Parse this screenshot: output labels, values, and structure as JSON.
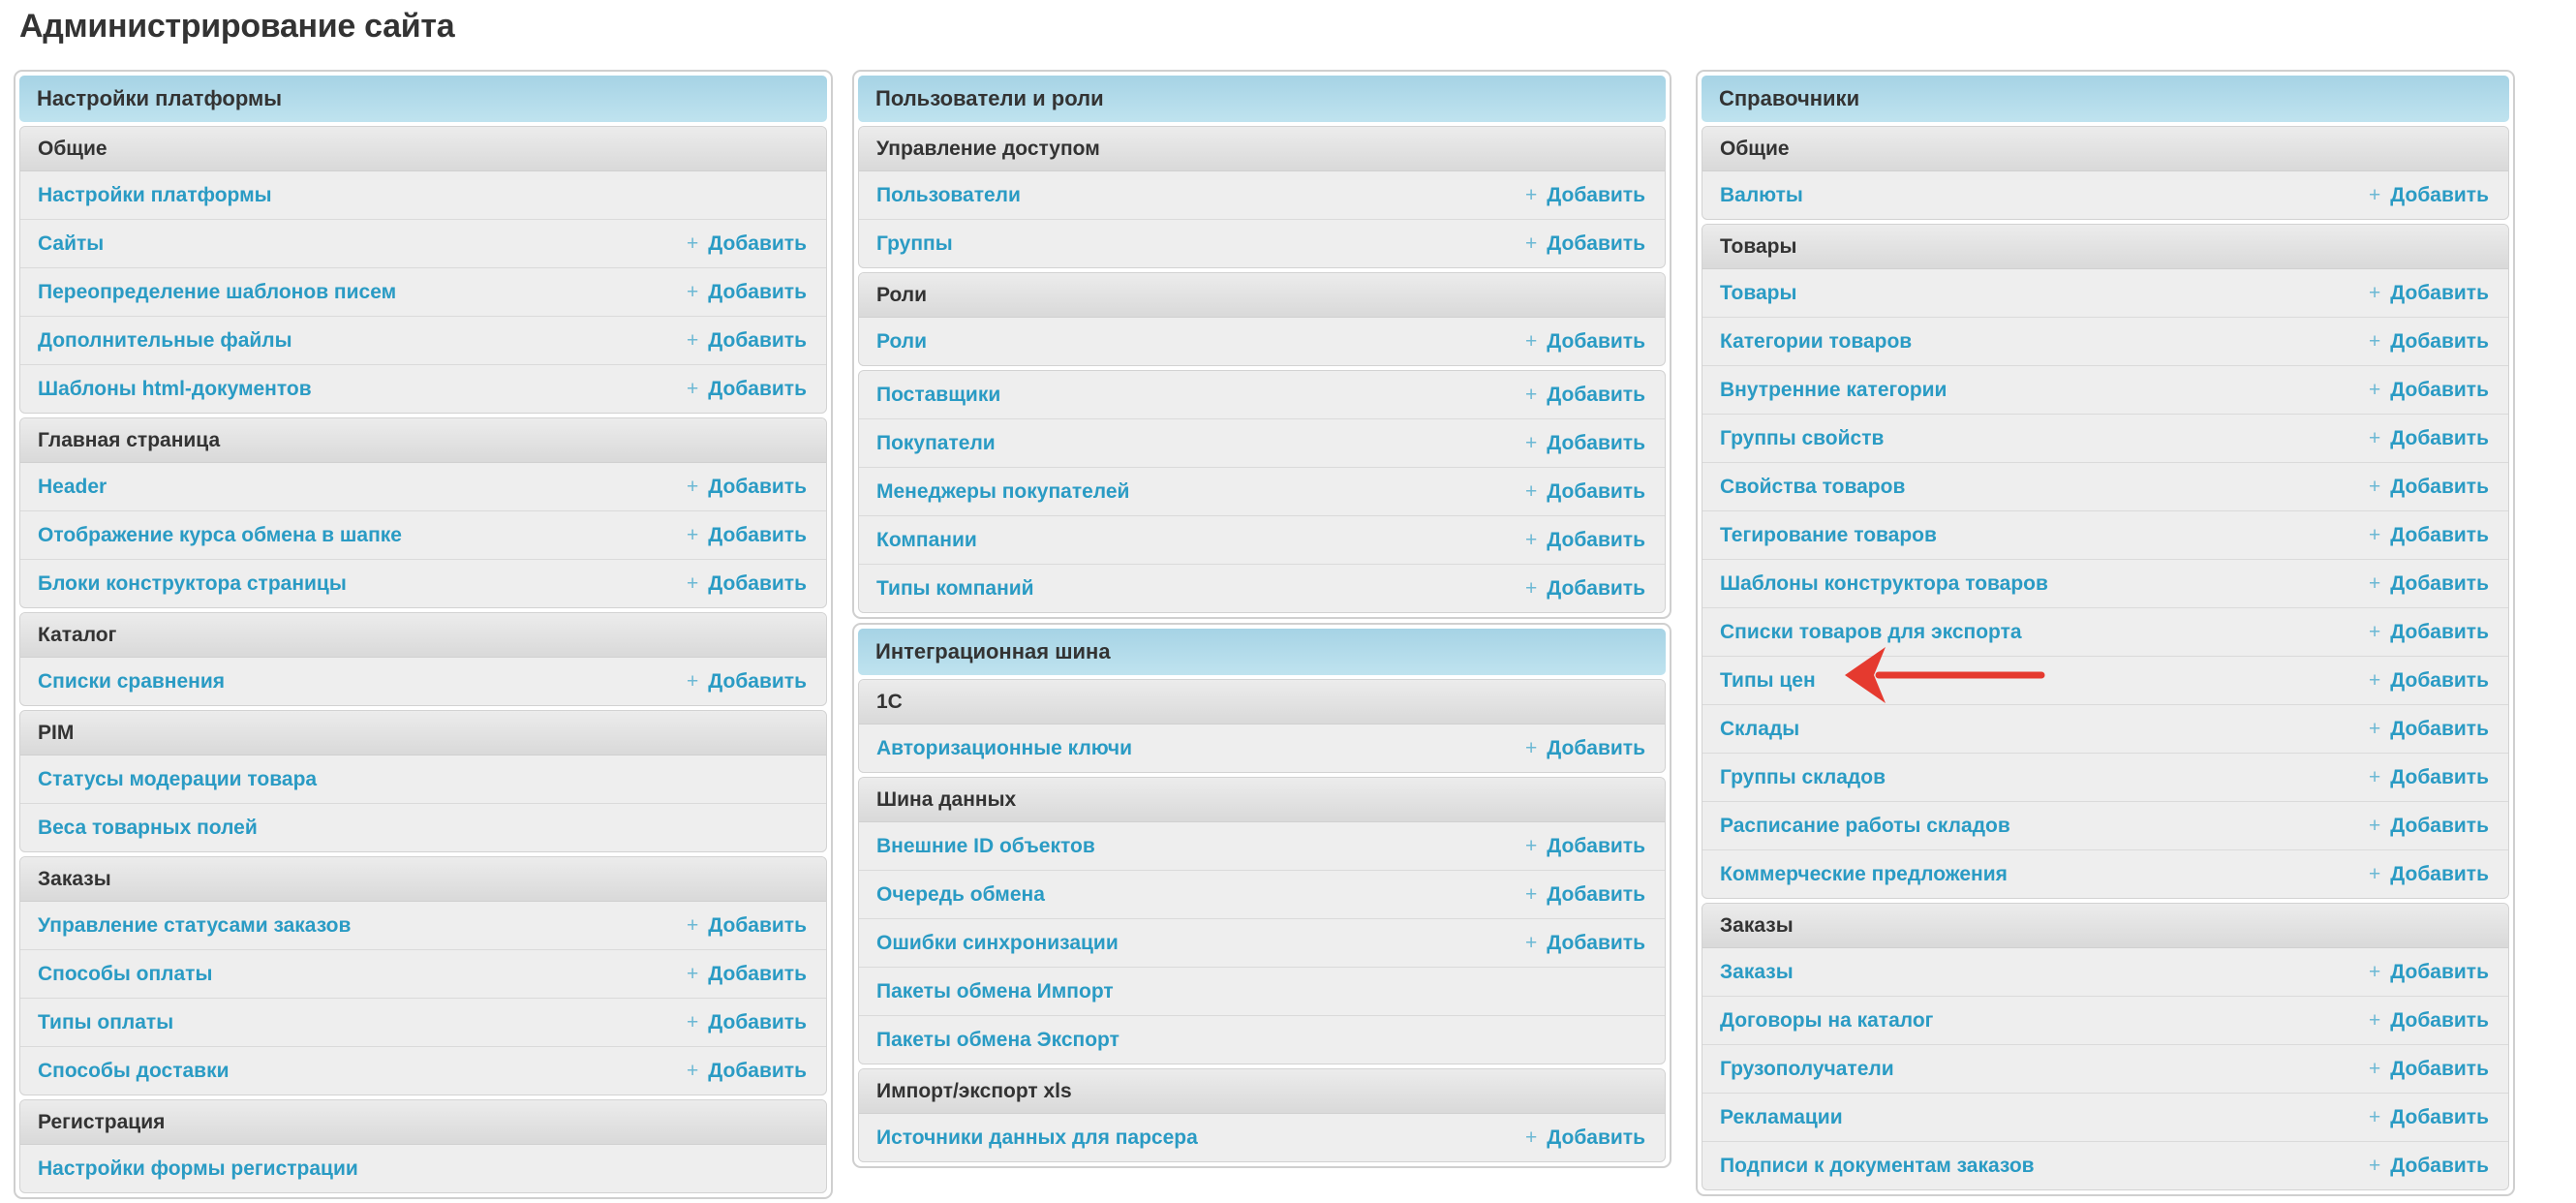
{
  "title": "Администрирование сайта",
  "add_label": "Добавить",
  "accent_color": "#2a9bc4",
  "annotation_arrow_color": "#e53a2f",
  "columns": [
    {
      "panels": [
        {
          "title": "Настройки платформы",
          "groups": [
            {
              "title": "Общие",
              "rows": [
                {
                  "label": "Настройки платформы",
                  "add": false
                },
                {
                  "label": "Сайты",
                  "add": true
                },
                {
                  "label": "Переопределение шаблонов писем",
                  "add": true
                },
                {
                  "label": "Дополнительные файлы",
                  "add": true
                },
                {
                  "label": "Шаблоны html-документов",
                  "add": true
                }
              ]
            },
            {
              "title": "Главная страница",
              "rows": [
                {
                  "label": "Header",
                  "add": true
                },
                {
                  "label": "Отображение курса обмена в шапке",
                  "add": true
                },
                {
                  "label": "Блоки конструктора страницы",
                  "add": true
                }
              ]
            },
            {
              "title": "Каталог",
              "rows": [
                {
                  "label": "Списки сравнения",
                  "add": true
                }
              ]
            },
            {
              "title": "PIM",
              "rows": [
                {
                  "label": "Статусы модерации товара",
                  "add": false
                },
                {
                  "label": "Веса товарных полей",
                  "add": false
                }
              ]
            },
            {
              "title": "Заказы",
              "rows": [
                {
                  "label": "Управление статусами заказов",
                  "add": true
                },
                {
                  "label": "Способы оплаты",
                  "add": true
                },
                {
                  "label": "Типы оплаты",
                  "add": true
                },
                {
                  "label": "Способы доставки",
                  "add": true
                }
              ]
            },
            {
              "title": "Регистрация",
              "rows": [
                {
                  "label": "Настройки формы регистрации",
                  "add": false
                }
              ]
            }
          ]
        }
      ]
    },
    {
      "panels": [
        {
          "title": "Пользователи и роли",
          "groups": [
            {
              "title": "Управление доступом",
              "rows": [
                {
                  "label": "Пользователи",
                  "add": true
                },
                {
                  "label": "Группы",
                  "add": true
                }
              ]
            },
            {
              "title": "Роли",
              "rows": [
                {
                  "label": "Роли",
                  "add": true
                }
              ]
            },
            {
              "title": "",
              "rows": [
                {
                  "label": "Поставщики",
                  "add": true
                },
                {
                  "label": "Покупатели",
                  "add": true
                },
                {
                  "label": "Менеджеры покупателей",
                  "add": true
                },
                {
                  "label": "Компании",
                  "add": true
                },
                {
                  "label": "Типы компаний",
                  "add": true
                }
              ]
            }
          ]
        },
        {
          "title": "Интеграционная шина",
          "groups": [
            {
              "title": "1С",
              "rows": [
                {
                  "label": "Авторизационные ключи",
                  "add": true
                }
              ]
            },
            {
              "title": "Шина данных",
              "rows": [
                {
                  "label": "Внешние ID объектов",
                  "add": true
                },
                {
                  "label": "Очередь обмена",
                  "add": true
                },
                {
                  "label": "Ошибки синхронизации",
                  "add": true
                },
                {
                  "label": "Пакеты обмена Импорт",
                  "add": false
                },
                {
                  "label": "Пакеты обмена Экспорт",
                  "add": false
                }
              ]
            },
            {
              "title": "Импорт/экспорт xls",
              "rows": [
                {
                  "label": "Источники данных для парсера",
                  "add": true
                }
              ]
            }
          ]
        }
      ]
    },
    {
      "panels": [
        {
          "title": "Справочники",
          "groups": [
            {
              "title": "Общие",
              "rows": [
                {
                  "label": "Валюты",
                  "add": true
                }
              ]
            },
            {
              "title": "Товары",
              "rows": [
                {
                  "label": "Товары",
                  "add": true
                },
                {
                  "label": "Категории товаров",
                  "add": true
                },
                {
                  "label": "Внутренние категории",
                  "add": true
                },
                {
                  "label": "Группы свойств",
                  "add": true
                },
                {
                  "label": "Свойства товаров",
                  "add": true
                },
                {
                  "label": "Тегирование товаров",
                  "add": true
                },
                {
                  "label": "Шаблоны конструктора товаров",
                  "add": true
                },
                {
                  "label": "Списки товаров для экспорта",
                  "add": true
                },
                {
                  "label": "Типы цен",
                  "add": true
                },
                {
                  "label": "Склады",
                  "add": true
                },
                {
                  "label": "Группы складов",
                  "add": true
                },
                {
                  "label": "Расписание работы складов",
                  "add": true
                },
                {
                  "label": "Коммерческие предложения",
                  "add": true
                }
              ]
            },
            {
              "title": "Заказы",
              "rows": [
                {
                  "label": "Заказы",
                  "add": true
                },
                {
                  "label": "Договоры на каталог",
                  "add": true
                },
                {
                  "label": "Грузополучатели",
                  "add": true
                },
                {
                  "label": "Рекламации",
                  "add": true
                },
                {
                  "label": "Подписи к документам заказов",
                  "add": true
                }
              ]
            }
          ]
        }
      ]
    }
  ]
}
